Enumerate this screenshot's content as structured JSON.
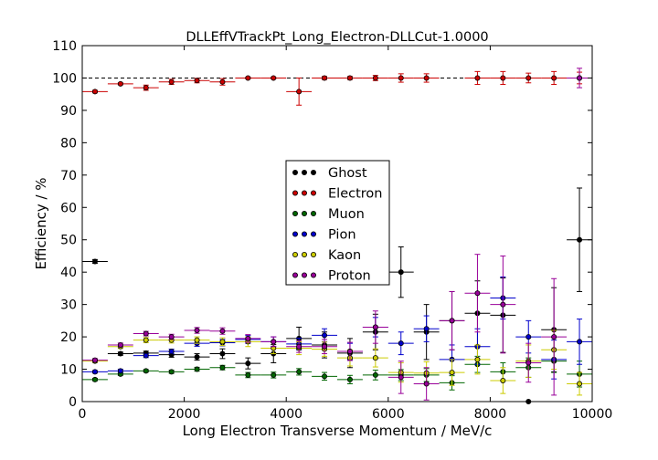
{
  "chart_data": {
    "type": "scatter",
    "title": "DLLEffVTrackPt_Long_Electron-DLLCut-1.0000",
    "xlabel": "Long Electron Transverse Momentum / MeV/c",
    "ylabel": "Efficiency / %",
    "xlim": [
      0,
      10000
    ],
    "ylim": [
      0,
      110
    ],
    "xticks": [
      "0",
      "2000",
      "4000",
      "6000",
      "8000",
      "10000"
    ],
    "yticks": [
      "0",
      "10",
      "20",
      "30",
      "40",
      "50",
      "60",
      "70",
      "80",
      "90",
      "100",
      "110"
    ],
    "reference_line": 100,
    "bin_half_width": 250,
    "legend_position": "center",
    "series": [
      {
        "name": "Ghost",
        "color": "#000000",
        "x": [
          250,
          750,
          1250,
          1750,
          2250,
          2750,
          3250,
          3750,
          4250,
          4750,
          5250,
          5750,
          6250,
          6750,
          7250,
          7750,
          8250,
          8750,
          9250,
          9750
        ],
        "y": [
          43.3,
          14.8,
          15.0,
          14.5,
          13.8,
          14.8,
          11.8,
          14.8,
          19.5,
          17.5,
          15.0,
          21.5,
          40.0,
          21.5,
          25.0,
          27.3,
          26.7,
          0,
          22.2,
          50.0
        ],
        "err": [
          0.6,
          0.5,
          0.6,
          0.8,
          1.0,
          1.5,
          1.7,
          2.8,
          3.5,
          4.0,
          4.5,
          5.5,
          7.8,
          8.5,
          9.0,
          10.0,
          11.5,
          0,
          13.0,
          16.0
        ]
      },
      {
        "name": "Electron",
        "color": "#cc0000",
        "x": [
          250,
          750,
          1250,
          1750,
          2250,
          2750,
          3250,
          3750,
          4250,
          4750,
          5250,
          5750,
          6250,
          6750,
          7750,
          8250,
          8750,
          9250,
          9750
        ],
        "y": [
          95.8,
          98.2,
          97.0,
          98.8,
          99.2,
          98.8,
          100,
          100,
          95.8,
          100,
          100,
          100,
          100,
          100,
          100,
          100,
          100,
          100,
          100
        ],
        "err": [
          0.4,
          0.3,
          0.8,
          0.8,
          0.7,
          1.0,
          0.3,
          0.3,
          4.2,
          0.5,
          0.5,
          0.8,
          1.3,
          1.3,
          2.0,
          2.0,
          1.5,
          2.0,
          1.8
        ]
      },
      {
        "name": "Muon",
        "color": "#006600",
        "x": [
          250,
          750,
          1250,
          1750,
          2250,
          2750,
          3250,
          3750,
          4250,
          4750,
          5250,
          5750,
          6250,
          6750,
          7250,
          7750,
          8250,
          8750,
          9250,
          9750
        ],
        "y": [
          6.8,
          8.5,
          9.5,
          9.2,
          10.0,
          10.5,
          8.2,
          8.2,
          9.2,
          7.8,
          6.8,
          8.2,
          8.2,
          8.2,
          5.8,
          11.5,
          9.2,
          10.5,
          12.5,
          8.5
        ],
        "err": [
          0.4,
          0.4,
          0.4,
          0.5,
          0.6,
          0.7,
          0.8,
          0.9,
          1.0,
          1.2,
          1.3,
          1.5,
          1.7,
          2.0,
          2.2,
          2.5,
          2.8,
          3.0,
          3.5,
          4.0
        ]
      },
      {
        "name": "Pion",
        "color": "#0000cc",
        "x": [
          250,
          750,
          1250,
          1750,
          2250,
          2750,
          3250,
          3750,
          4250,
          4750,
          5250,
          5750,
          6250,
          6750,
          7250,
          7750,
          8250,
          8750,
          9250,
          9750
        ],
        "y": [
          9.2,
          9.5,
          14.2,
          15.5,
          18.0,
          18.2,
          19.2,
          18.5,
          17.8,
          20.5,
          15.5,
          23.0,
          18.0,
          22.5,
          13.0,
          17.0,
          32.0,
          20.0,
          13.0,
          18.5
        ],
        "err": [
          0.4,
          0.5,
          0.6,
          0.7,
          0.9,
          1.0,
          1.2,
          1.5,
          1.8,
          2.0,
          2.5,
          3.0,
          3.5,
          4.0,
          4.5,
          5.5,
          6.5,
          5.0,
          6.0,
          7.0
        ]
      },
      {
        "name": "Kaon",
        "color": "#cccc00",
        "x": [
          250,
          750,
          1250,
          1750,
          2250,
          2750,
          3250,
          3750,
          4250,
          4750,
          5250,
          5750,
          6250,
          6750,
          7250,
          7750,
          8250,
          8750,
          9250,
          9750
        ],
        "y": [
          12.5,
          17.0,
          19.0,
          19.0,
          19.0,
          18.5,
          18.5,
          16.5,
          16.5,
          16.2,
          13.5,
          13.5,
          9.0,
          8.8,
          9.0,
          13.0,
          6.5,
          12.5,
          16.0,
          5.5
        ],
        "err": [
          0.5,
          0.6,
          0.8,
          0.9,
          1.0,
          1.2,
          1.5,
          1.7,
          2.0,
          2.2,
          2.5,
          2.8,
          3.0,
          3.5,
          4.0,
          4.5,
          4.0,
          5.0,
          6.0,
          3.5
        ]
      },
      {
        "name": "Proton",
        "color": "#990099",
        "x": [
          250,
          750,
          1250,
          1750,
          2250,
          2750,
          3250,
          3750,
          4250,
          4750,
          5250,
          5750,
          6250,
          6750,
          7250,
          7750,
          8250,
          8750,
          9250,
          9750
        ],
        "y": [
          12.8,
          17.5,
          21.0,
          20.0,
          22.0,
          21.8,
          19.5,
          18.5,
          17.0,
          17.0,
          15.5,
          23.0,
          7.5,
          5.5,
          25.0,
          33.5,
          30.0,
          12.0,
          20.0,
          100
        ],
        "err": [
          0.5,
          0.6,
          0.7,
          0.8,
          0.9,
          1.0,
          1.2,
          1.5,
          1.8,
          2.2,
          2.8,
          5.0,
          5.0,
          5.0,
          9.0,
          12.0,
          15.0,
          6.0,
          18.0,
          3.0
        ]
      }
    ]
  }
}
